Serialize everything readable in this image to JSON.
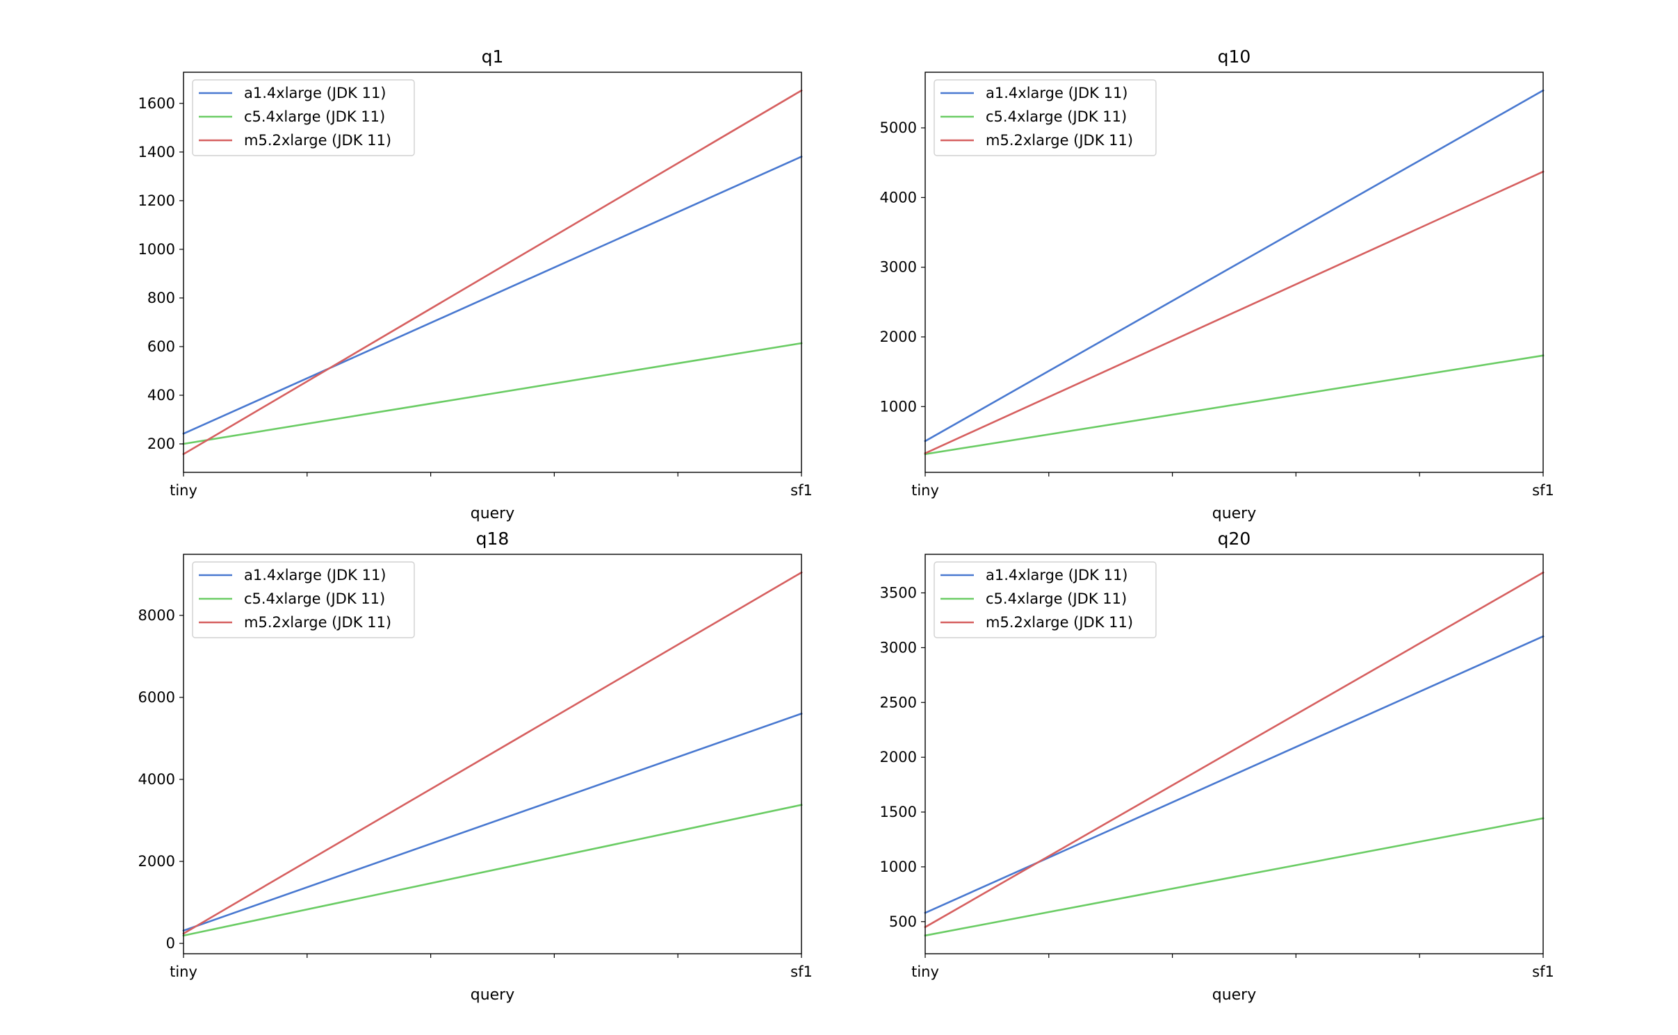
{
  "colors": {
    "a1": "#4878d0",
    "c5": "#6acc64",
    "m5": "#d65f5f"
  },
  "chart_data": [
    {
      "type": "line",
      "title": "q1",
      "xlabel": "query",
      "ylabel": "",
      "categories": [
        "tiny",
        "sf1"
      ],
      "ylim": [
        83,
        1728
      ],
      "yticks": [
        200,
        400,
        600,
        800,
        1000,
        1200,
        1400,
        1600
      ],
      "grid": false,
      "legend": "upper-left",
      "series": [
        {
          "name": "a1.4xlarge (JDK 11)",
          "color": "#4878d0",
          "values": [
            242,
            1381
          ]
        },
        {
          "name": "c5.4xlarge (JDK 11)",
          "color": "#6acc64",
          "values": [
            200,
            614
          ]
        },
        {
          "name": "m5.2xlarge (JDK 11)",
          "color": "#d65f5f",
          "values": [
            158,
            1653
          ]
        }
      ]
    },
    {
      "type": "line",
      "title": "q10",
      "xlabel": "query",
      "ylabel": "",
      "categories": [
        "tiny",
        "sf1"
      ],
      "ylim": [
        56,
        5798
      ],
      "yticks": [
        1000,
        2000,
        3000,
        4000,
        5000
      ],
      "grid": false,
      "legend": "upper-left",
      "series": [
        {
          "name": "a1.4xlarge (JDK 11)",
          "color": "#4878d0",
          "values": [
            504,
            5537
          ]
        },
        {
          "name": "c5.4xlarge (JDK 11)",
          "color": "#6acc64",
          "values": [
            317,
            1733
          ]
        },
        {
          "name": "m5.2xlarge (JDK 11)",
          "color": "#d65f5f",
          "values": [
            330,
            4371
          ]
        }
      ]
    },
    {
      "type": "line",
      "title": "q18",
      "xlabel": "query",
      "ylabel": "",
      "categories": [
        "tiny",
        "sf1"
      ],
      "ylim": [
        -252,
        9489
      ],
      "yticks": [
        0,
        2000,
        4000,
        6000,
        8000
      ],
      "grid": false,
      "legend": "upper-left",
      "series": [
        {
          "name": "a1.4xlarge (JDK 11)",
          "color": "#4878d0",
          "values": [
            311,
            5604
          ]
        },
        {
          "name": "c5.4xlarge (JDK 11)",
          "color": "#6acc64",
          "values": [
            191,
            3378
          ]
        },
        {
          "name": "m5.2xlarge (JDK 11)",
          "color": "#d65f5f",
          "values": [
            240,
            9046
          ]
        }
      ]
    },
    {
      "type": "line",
      "title": "q20",
      "xlabel": "query",
      "ylabel": "",
      "categories": [
        "tiny",
        "sf1"
      ],
      "ylim": [
        207,
        3852
      ],
      "yticks": [
        500,
        1000,
        1500,
        2000,
        2500,
        3000,
        3500
      ],
      "grid": false,
      "legend": "upper-left",
      "series": [
        {
          "name": "a1.4xlarge (JDK 11)",
          "color": "#4878d0",
          "values": [
            580,
            3103
          ]
        },
        {
          "name": "c5.4xlarge (JDK 11)",
          "color": "#6acc64",
          "values": [
            373,
            1443
          ]
        },
        {
          "name": "m5.2xlarge (JDK 11)",
          "color": "#d65f5f",
          "values": [
            450,
            3686
          ]
        }
      ]
    }
  ]
}
